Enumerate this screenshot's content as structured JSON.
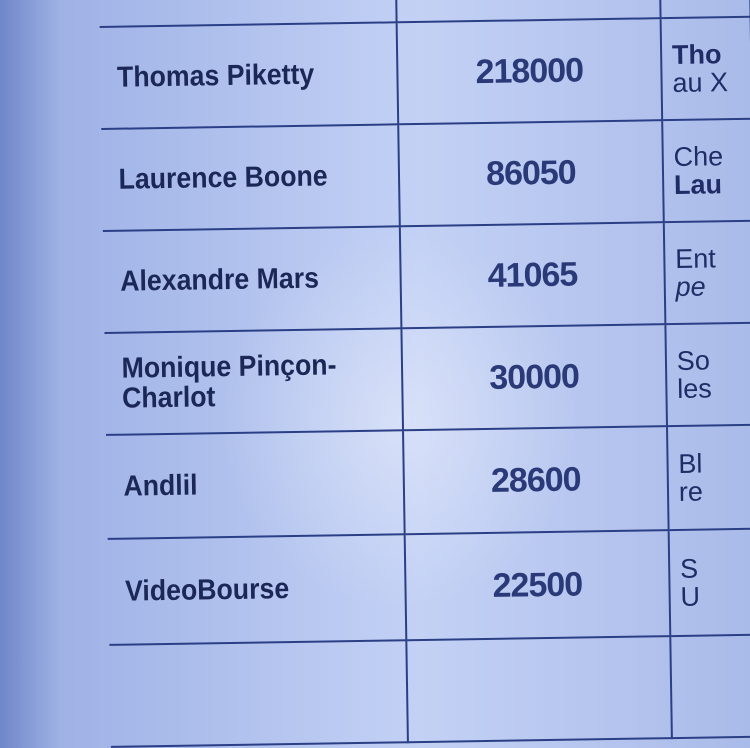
{
  "table": {
    "rows": [
      {
        "name": "Thomas Piketty",
        "value": "218000",
        "desc_line1": "Tho",
        "desc_line2": "au X"
      },
      {
        "name": "Laurence Boone",
        "value": "86050",
        "desc_line1": "Che",
        "desc_line2": "Lau"
      },
      {
        "name": "Alexandre Mars",
        "value": "41065",
        "desc_line1": "Ent",
        "desc_line2": "pe"
      },
      {
        "name": "Monique Pinçon-Charlot",
        "value": "30000",
        "desc_line1": "So",
        "desc_line2": "les"
      },
      {
        "name": "Andlil",
        "value": "28600",
        "desc_line1": "Bl",
        "desc_line2": "re"
      },
      {
        "name": "VideoBourse",
        "value": "22500",
        "desc_line1": "S",
        "desc_line2": "U"
      }
    ]
  }
}
